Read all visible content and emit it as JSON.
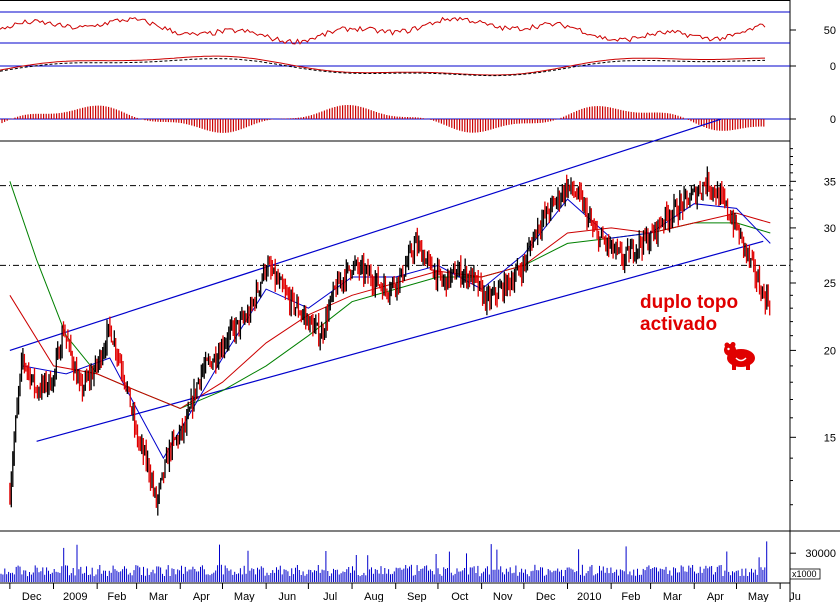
{
  "chart_data": {
    "type": "candlestick",
    "colors": {
      "up_candle": "#000000",
      "down_candle": "#e00000",
      "channel": "#0000cc",
      "sma_fast": "#0000cc",
      "sma_mid": "#cc0000",
      "sma_slow": "#008000",
      "rsi": "#cc0000",
      "macd_hist": "#cc0000",
      "volume": "#0000cc",
      "annotation": "#e00000"
    },
    "x_axis": {
      "labels": [
        "Dec",
        "2009",
        "Feb",
        "Mar",
        "Apr",
        "May",
        "Jun",
        "Jul",
        "Aug",
        "Sep",
        "Oct",
        "Nov",
        "Dec",
        "2010",
        "Feb",
        "Mar",
        "Apr",
        "May",
        "Ju"
      ],
      "dates": [
        "2008-12",
        "2009-01",
        "2009-02",
        "2009-03",
        "2009-04",
        "2009-05",
        "2009-06",
        "2009-07",
        "2009-08",
        "2009-09",
        "2009-10",
        "2009-11",
        "2009-12",
        "2010-01",
        "2010-02",
        "2010-03",
        "2010-04",
        "2010-05",
        "2010-06"
      ]
    },
    "price_axis": {
      "scale": "log",
      "ticks": [
        15,
        20,
        25,
        30,
        35
      ],
      "range": [
        11,
        40
      ]
    },
    "rsi_panel": {
      "ticks": [
        "50"
      ],
      "reference_lines": [
        30,
        50,
        70
      ]
    },
    "macd_panel": {
      "ticks": [
        "0"
      ]
    },
    "hist_panel": {
      "ticks": [
        "0"
      ]
    },
    "volume_panel": {
      "ticks": [
        "30000"
      ],
      "unit_label": "x1000",
      "range": [
        0,
        50000
      ]
    },
    "horizontal_levels": [
      34.5,
      26.5
    ],
    "channel": {
      "upper": [
        {
          "date": "2008-12-01",
          "value": 20
        },
        {
          "date": "2010-04-20",
          "value": 43
        }
      ],
      "lower": [
        {
          "date": "2008-12-20",
          "value": 14.8
        },
        {
          "date": "2010-05-20",
          "value": 28.7
        }
      ]
    },
    "closes": [
      [
        "2008-12-01",
        12.5
      ],
      [
        "2008-12-10",
        19.5
      ],
      [
        "2008-12-20",
        17.5
      ],
      [
        "2009-01-01",
        18.2
      ],
      [
        "2009-01-08",
        21.5
      ],
      [
        "2009-01-20",
        17.5
      ],
      [
        "2009-02-01",
        19.0
      ],
      [
        "2009-02-10",
        21.5
      ],
      [
        "2009-02-20",
        18.5
      ],
      [
        "2009-03-01",
        15.0
      ],
      [
        "2009-03-10",
        13.5
      ],
      [
        "2009-03-15",
        12.0
      ],
      [
        "2009-03-25",
        14.5
      ],
      [
        "2009-04-05",
        15.5
      ],
      [
        "2009-04-15",
        18.5
      ],
      [
        "2009-04-25",
        19.5
      ],
      [
        "2009-05-05",
        21.0
      ],
      [
        "2009-05-20",
        22.5
      ],
      [
        "2009-06-01",
        26.5
      ],
      [
        "2009-06-15",
        24.0
      ],
      [
        "2009-07-01",
        22.0
      ],
      [
        "2009-07-10",
        21.0
      ],
      [
        "2009-07-20",
        24.5
      ],
      [
        "2009-08-01",
        26.5
      ],
      [
        "2009-08-15",
        25.5
      ],
      [
        "2009-08-25",
        24.5
      ],
      [
        "2009-09-05",
        25.5
      ],
      [
        "2009-09-15",
        28.5
      ],
      [
        "2009-09-25",
        26.5
      ],
      [
        "2009-10-05",
        25.0
      ],
      [
        "2009-10-15",
        26.0
      ],
      [
        "2009-10-25",
        25.5
      ],
      [
        "2009-11-05",
        23.5
      ],
      [
        "2009-11-20",
        25.0
      ],
      [
        "2009-12-01",
        26.5
      ],
      [
        "2009-12-10",
        30.0
      ],
      [
        "2009-12-20",
        32.0
      ],
      [
        "2010-01-01",
        34.5
      ],
      [
        "2010-01-10",
        33.0
      ],
      [
        "2010-01-20",
        29.5
      ],
      [
        "2010-02-01",
        28.0
      ],
      [
        "2010-02-10",
        27.0
      ],
      [
        "2010-02-20",
        28.5
      ],
      [
        "2010-03-01",
        29.0
      ],
      [
        "2010-03-10",
        31.0
      ],
      [
        "2010-03-20",
        32.0
      ],
      [
        "2010-04-01",
        33.5
      ],
      [
        "2010-04-10",
        35.0
      ],
      [
        "2010-04-20",
        33.0
      ],
      [
        "2010-05-01",
        30.0
      ],
      [
        "2010-05-10",
        27.0
      ],
      [
        "2010-05-20",
        24.0
      ],
      [
        "2010-05-25",
        23.5
      ]
    ],
    "sma_fast": [
      [
        "2008-12-10",
        19.0
      ],
      [
        "2009-01-10",
        18.5
      ],
      [
        "2009-02-10",
        19.5
      ],
      [
        "2009-03-01",
        16.5
      ],
      [
        "2009-03-20",
        14.0
      ],
      [
        "2009-04-10",
        16.5
      ],
      [
        "2009-05-01",
        19.5
      ],
      [
        "2009-06-01",
        24.5
      ],
      [
        "2009-07-01",
        23.0
      ],
      [
        "2009-08-01",
        25.5
      ],
      [
        "2009-09-01",
        25.5
      ],
      [
        "2009-10-01",
        26.5
      ],
      [
        "2009-11-01",
        24.5
      ],
      [
        "2009-12-01",
        27.5
      ],
      [
        "2010-01-01",
        33.0
      ],
      [
        "2010-02-01",
        29.0
      ],
      [
        "2010-03-01",
        29.5
      ],
      [
        "2010-04-01",
        32.5
      ],
      [
        "2010-05-01",
        32.0
      ],
      [
        "2010-05-25",
        28.5
      ]
    ],
    "sma_mid": [
      [
        "2008-12-01",
        24.0
      ],
      [
        "2009-01-01",
        19.0
      ],
      [
        "2009-02-01",
        18.5
      ],
      [
        "2009-03-01",
        17.5
      ],
      [
        "2009-04-01",
        16.5
      ],
      [
        "2009-05-01",
        18.0
      ],
      [
        "2009-06-01",
        20.5
      ],
      [
        "2009-07-01",
        22.5
      ],
      [
        "2009-08-01",
        24.0
      ],
      [
        "2009-09-01",
        25.0
      ],
      [
        "2009-10-01",
        26.0
      ],
      [
        "2009-11-01",
        25.5
      ],
      [
        "2009-12-01",
        26.5
      ],
      [
        "2010-01-01",
        29.5
      ],
      [
        "2010-02-01",
        30.0
      ],
      [
        "2010-03-01",
        29.5
      ],
      [
        "2010-04-01",
        30.5
      ],
      [
        "2010-05-01",
        31.5
      ],
      [
        "2010-05-25",
        30.5
      ]
    ],
    "sma_slow": [
      [
        "2008-12-01",
        35.0
      ],
      [
        "2008-12-20",
        27.0
      ],
      [
        "2009-01-10",
        21.0
      ],
      [
        "2009-02-01",
        18.5
      ],
      [
        "2009-03-01",
        17.5
      ],
      [
        "2009-04-01",
        16.5
      ],
      [
        "2009-05-01",
        17.5
      ],
      [
        "2009-06-01",
        19.0
      ],
      [
        "2009-07-01",
        21.0
      ],
      [
        "2009-08-01",
        23.5
      ],
      [
        "2009-09-01",
        24.5
      ],
      [
        "2009-10-01",
        25.5
      ],
      [
        "2009-11-01",
        25.5
      ],
      [
        "2009-12-01",
        26.5
      ],
      [
        "2010-01-01",
        28.5
      ],
      [
        "2010-02-01",
        29.0
      ],
      [
        "2010-03-01",
        29.5
      ],
      [
        "2010-04-01",
        30.5
      ],
      [
        "2010-05-01",
        30.5
      ],
      [
        "2010-05-25",
        29.5
      ]
    ],
    "annotation": {
      "lines": [
        "duplo topo",
        "activado"
      ],
      "date": "2010-03-05",
      "value": 24.5
    },
    "bear_icon": "bear-icon"
  }
}
